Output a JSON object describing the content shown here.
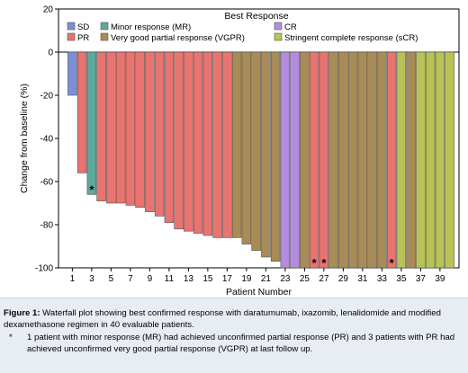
{
  "chart_data": {
    "type": "bar",
    "ylabel": "Change from baseline (%)",
    "xlabel": "Patient Number",
    "ylim": [
      -100,
      20
    ],
    "yticks": [
      20,
      0,
      -20,
      -40,
      -60,
      -80,
      -100
    ],
    "xticks": [
      1,
      3,
      5,
      7,
      9,
      11,
      13,
      15,
      17,
      19,
      21,
      23,
      25,
      27,
      29,
      31,
      33,
      35,
      37,
      39
    ],
    "patients": [
      1,
      2,
      3,
      4,
      5,
      6,
      7,
      8,
      9,
      10,
      11,
      12,
      13,
      14,
      15,
      16,
      17,
      18,
      19,
      20,
      21,
      22,
      23,
      24,
      25,
      26,
      27,
      28,
      29,
      30,
      31,
      32,
      33,
      34,
      35,
      36,
      37,
      38,
      39,
      40
    ],
    "values": [
      -20,
      -56,
      -66,
      -69,
      -70,
      -70,
      -71,
      -72,
      -74,
      -76,
      -79,
      -82,
      -83,
      -84,
      -85,
      -86,
      -86,
      -86,
      -89,
      -92,
      -95,
      -97,
      -100,
      -100,
      -100,
      -100,
      -100,
      -100,
      -100,
      -100,
      -100,
      -100,
      -100,
      -100,
      -100,
      -100,
      -100,
      -100,
      -100,
      -100
    ],
    "responses": [
      "SD",
      "PR",
      "MR",
      "PR",
      "PR",
      "PR",
      "PR",
      "PR",
      "PR",
      "PR",
      "PR",
      "PR",
      "PR",
      "PR",
      "PR",
      "PR",
      "PR",
      "VGPR",
      "VGPR",
      "VGPR",
      "VGPR",
      "VGPR",
      "CR",
      "CR",
      "VGPR",
      "PR",
      "PR",
      "VGPR",
      "VGPR",
      "VGPR",
      "VGPR",
      "VGPR",
      "VGPR",
      "PR",
      "sCR",
      "VGPR",
      "sCR",
      "sCR",
      "sCR",
      "sCR"
    ],
    "asterisks": [
      3,
      26,
      27,
      34
    ],
    "asterisk_symbol": "*",
    "legend": {
      "title": "Best Response",
      "placement": "top-right",
      "entries": [
        {
          "key": "SD",
          "label": "SD",
          "color": "#7b8fd6"
        },
        {
          "key": "MR",
          "label": "Minor response (MR)",
          "color": "#5fa89c"
        },
        {
          "key": "CR",
          "label": "CR",
          "color": "#b38ce0"
        },
        {
          "key": "PR",
          "label": "PR",
          "color": "#e8736f"
        },
        {
          "key": "VGPR",
          "label": "Very good partial response (VGPR)",
          "color": "#a88b57"
        },
        {
          "key": "sCR",
          "label": "Stringent complete response (sCR)",
          "color": "#b8c256"
        }
      ]
    }
  },
  "caption": {
    "label": "Figure 1:",
    "text": " Waterfall plot showing best confirmed response with daratumumab, ixazomib, lenalidomide and modified dexamethasone regimen in 40 evaluable patients.",
    "footnote_symbol": "*",
    "footnote_text": "1 patient with minor response (MR) had achieved unconfirmed partial response (PR) and 3 patients with PR had achieved unconfirmed very good partial response (VGPR) at last follow up."
  }
}
